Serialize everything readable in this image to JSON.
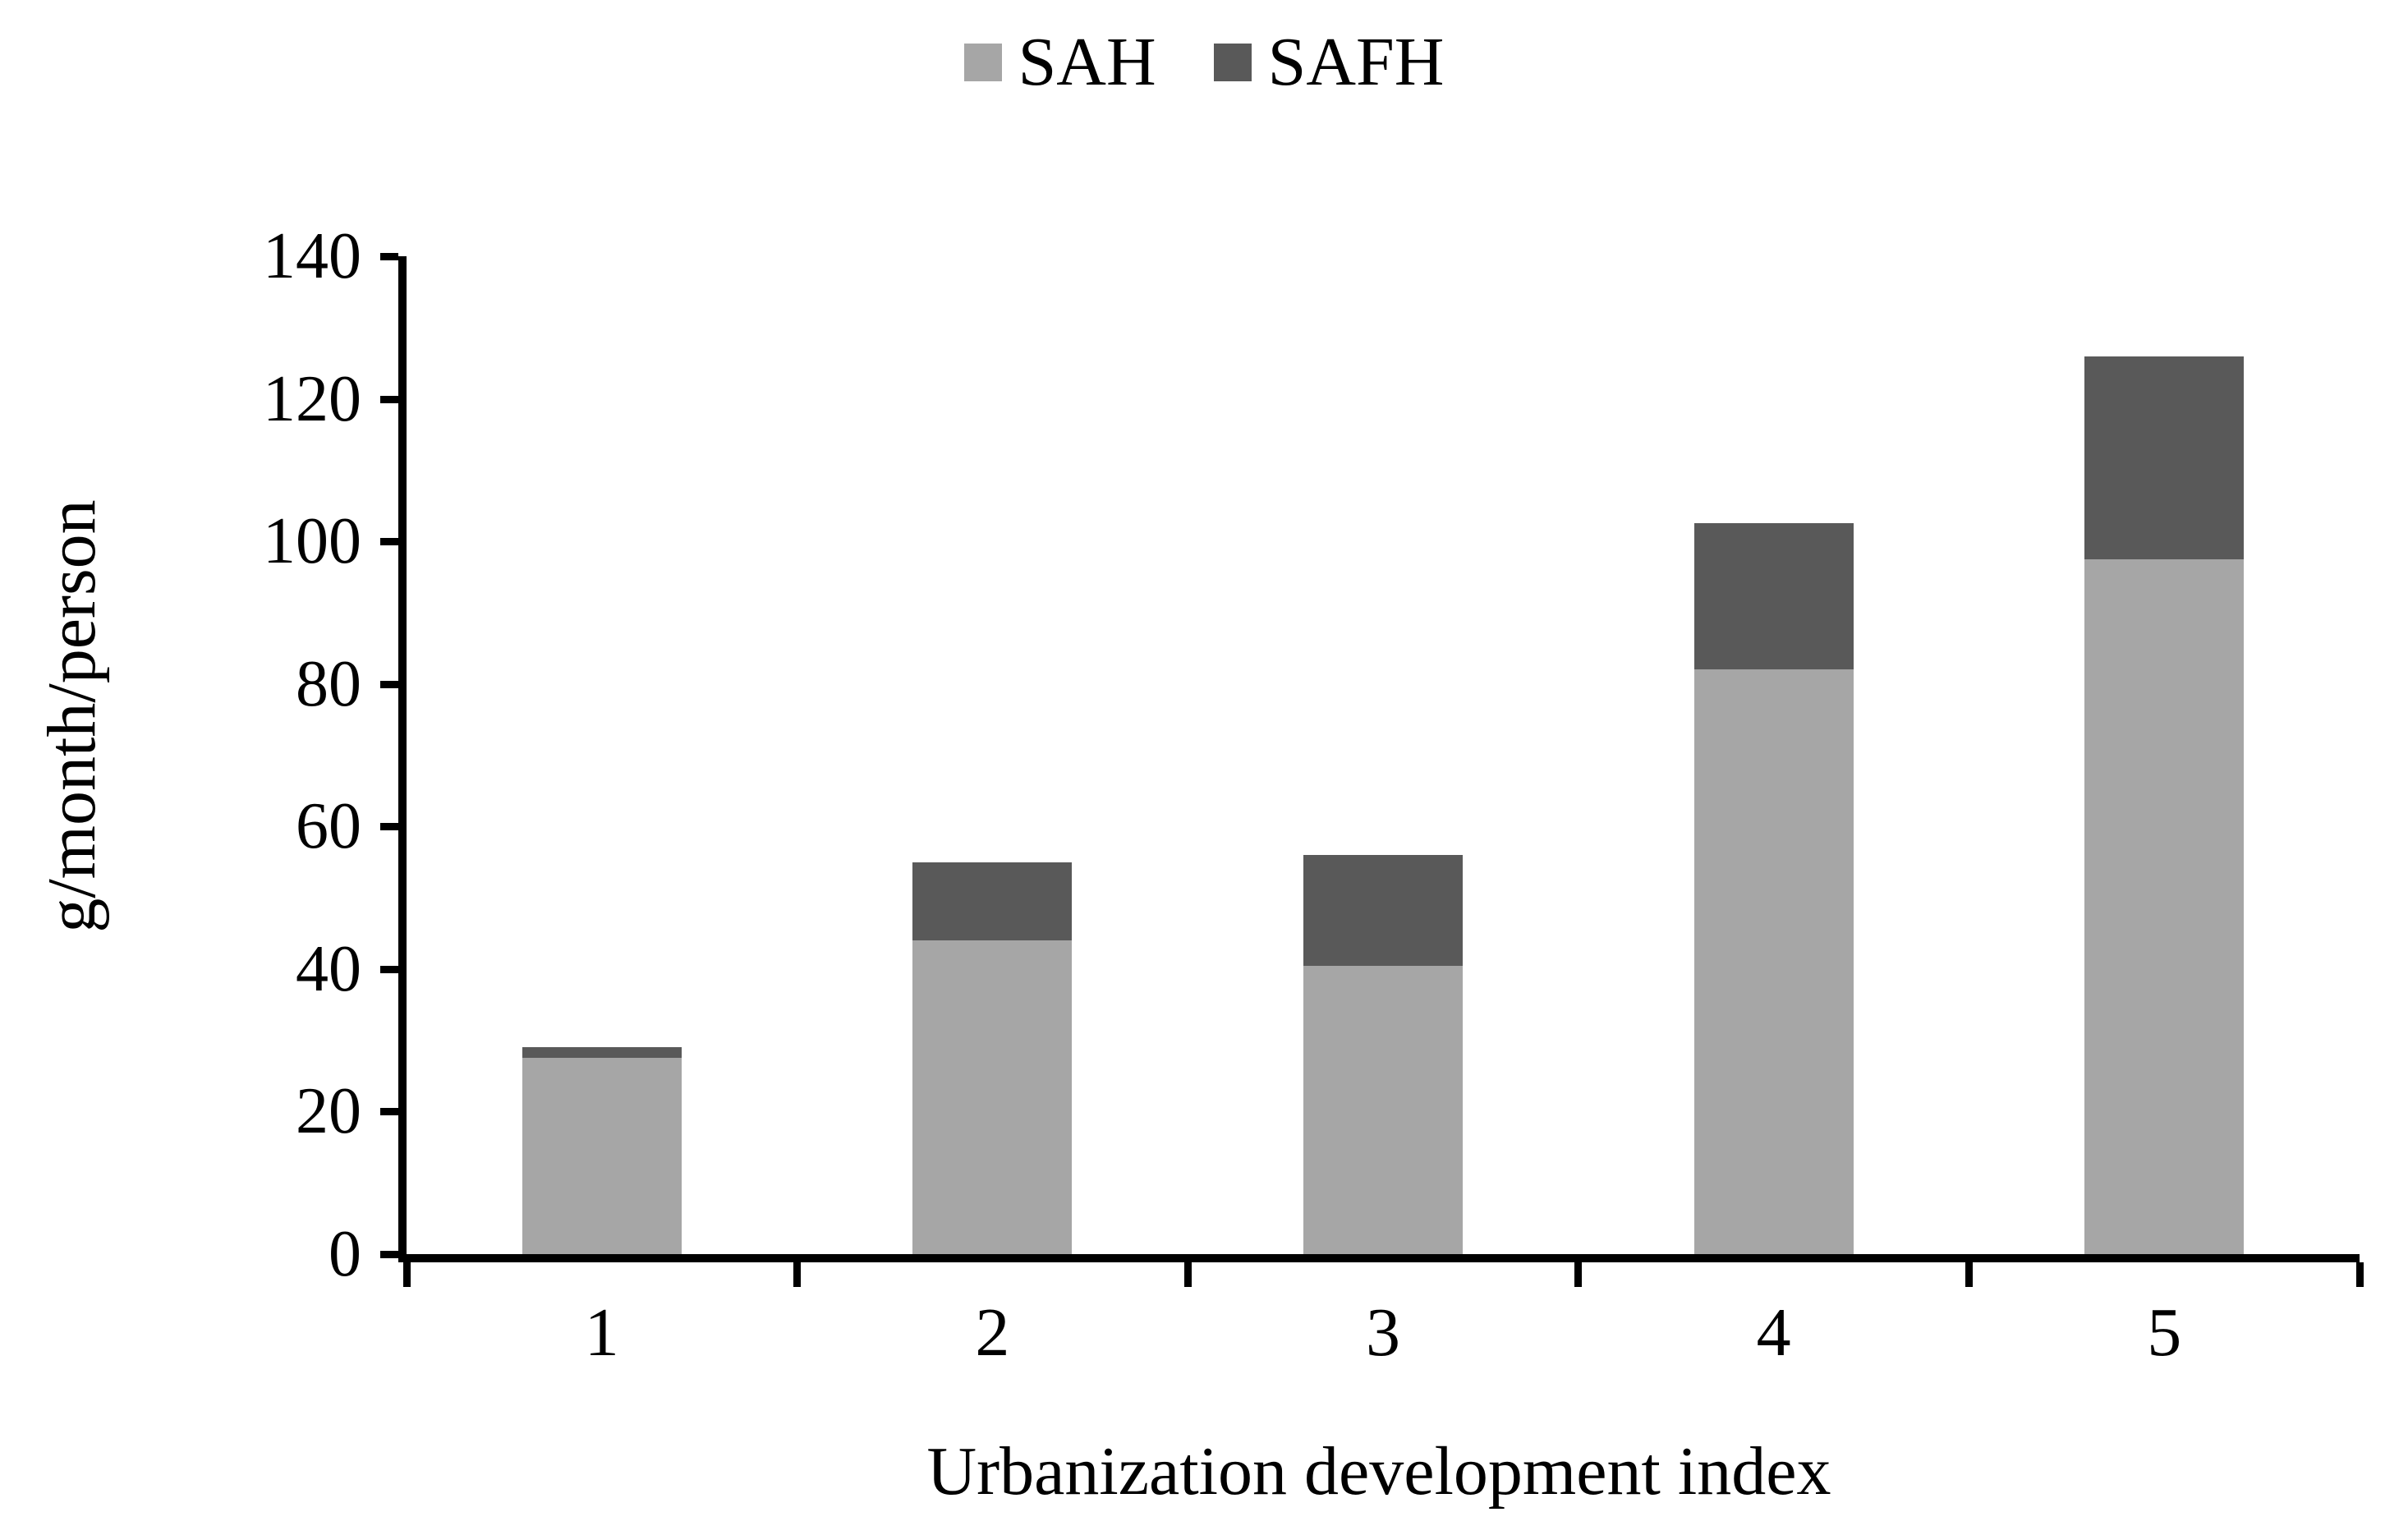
{
  "chart_data": {
    "type": "bar",
    "stacked": true,
    "title": "",
    "xlabel": "Urbanization development index",
    "ylabel": "g/month/person",
    "categories": [
      "1",
      "2",
      "3",
      "4",
      "5"
    ],
    "series": [
      {
        "name": "SAH",
        "color": "#a6a6a6",
        "values": [
          27.5,
          44,
          40.5,
          82,
          97.5
        ]
      },
      {
        "name": "SAFH",
        "color": "#595959",
        "values": [
          1.5,
          11,
          15.5,
          20.5,
          28.5
        ]
      }
    ],
    "totals": [
      29,
      55,
      56,
      102.5,
      126
    ],
    "ylim": [
      0,
      140
    ],
    "ytick_step": 20,
    "ytick_labels": [
      "0",
      "20",
      "40",
      "60",
      "80",
      "100",
      "120",
      "140"
    ],
    "legend_position": "top-center",
    "grid": false,
    "axis_color": "#000000",
    "text_color": "#000000",
    "background_color": "#ffffff"
  }
}
